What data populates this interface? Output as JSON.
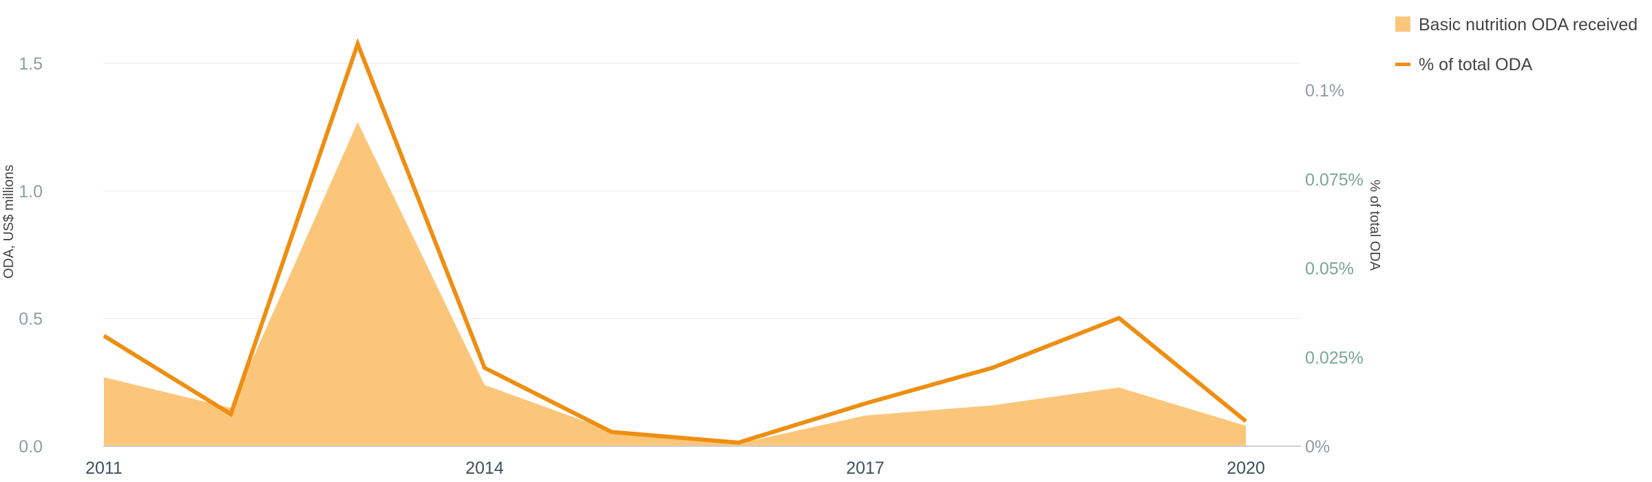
{
  "chart_data": {
    "type": "area",
    "x": [
      2011,
      2012,
      2013,
      2014,
      2015,
      2016,
      2017,
      2018,
      2019,
      2020
    ],
    "xticks": [
      "2011",
      "2014",
      "2017",
      "2020"
    ],
    "series": [
      {
        "name": "Basic nutrition ODA received",
        "type": "area",
        "axis": "left",
        "color": "#fcc67a",
        "values": [
          0.27,
          0.15,
          1.27,
          0.24,
          0.06,
          0.01,
          0.12,
          0.16,
          0.23,
          0.08
        ]
      },
      {
        "name": "% of total ODA",
        "type": "line",
        "axis": "right",
        "color": "#ee8e12",
        "values": [
          0.031,
          0.009,
          0.113,
          0.022,
          0.004,
          0.001,
          0.012,
          0.022,
          0.036,
          0.007
        ]
      }
    ],
    "y_left": {
      "label": "ODA, US$ millions",
      "range": [
        0,
        1.5
      ],
      "ticks": [
        "0.0",
        "0.5",
        "1.0",
        "1.5"
      ]
    },
    "y_right": {
      "label": "% of total ODA",
      "range": [
        0,
        0.1
      ],
      "ticks": [
        "0%",
        "0.025%",
        "0.05%",
        "0.075%",
        "0.1%"
      ]
    },
    "legend": {
      "placement": "top-right",
      "items": [
        "Basic nutrition ODA received",
        "% of total ODA"
      ]
    },
    "grid": true
  }
}
